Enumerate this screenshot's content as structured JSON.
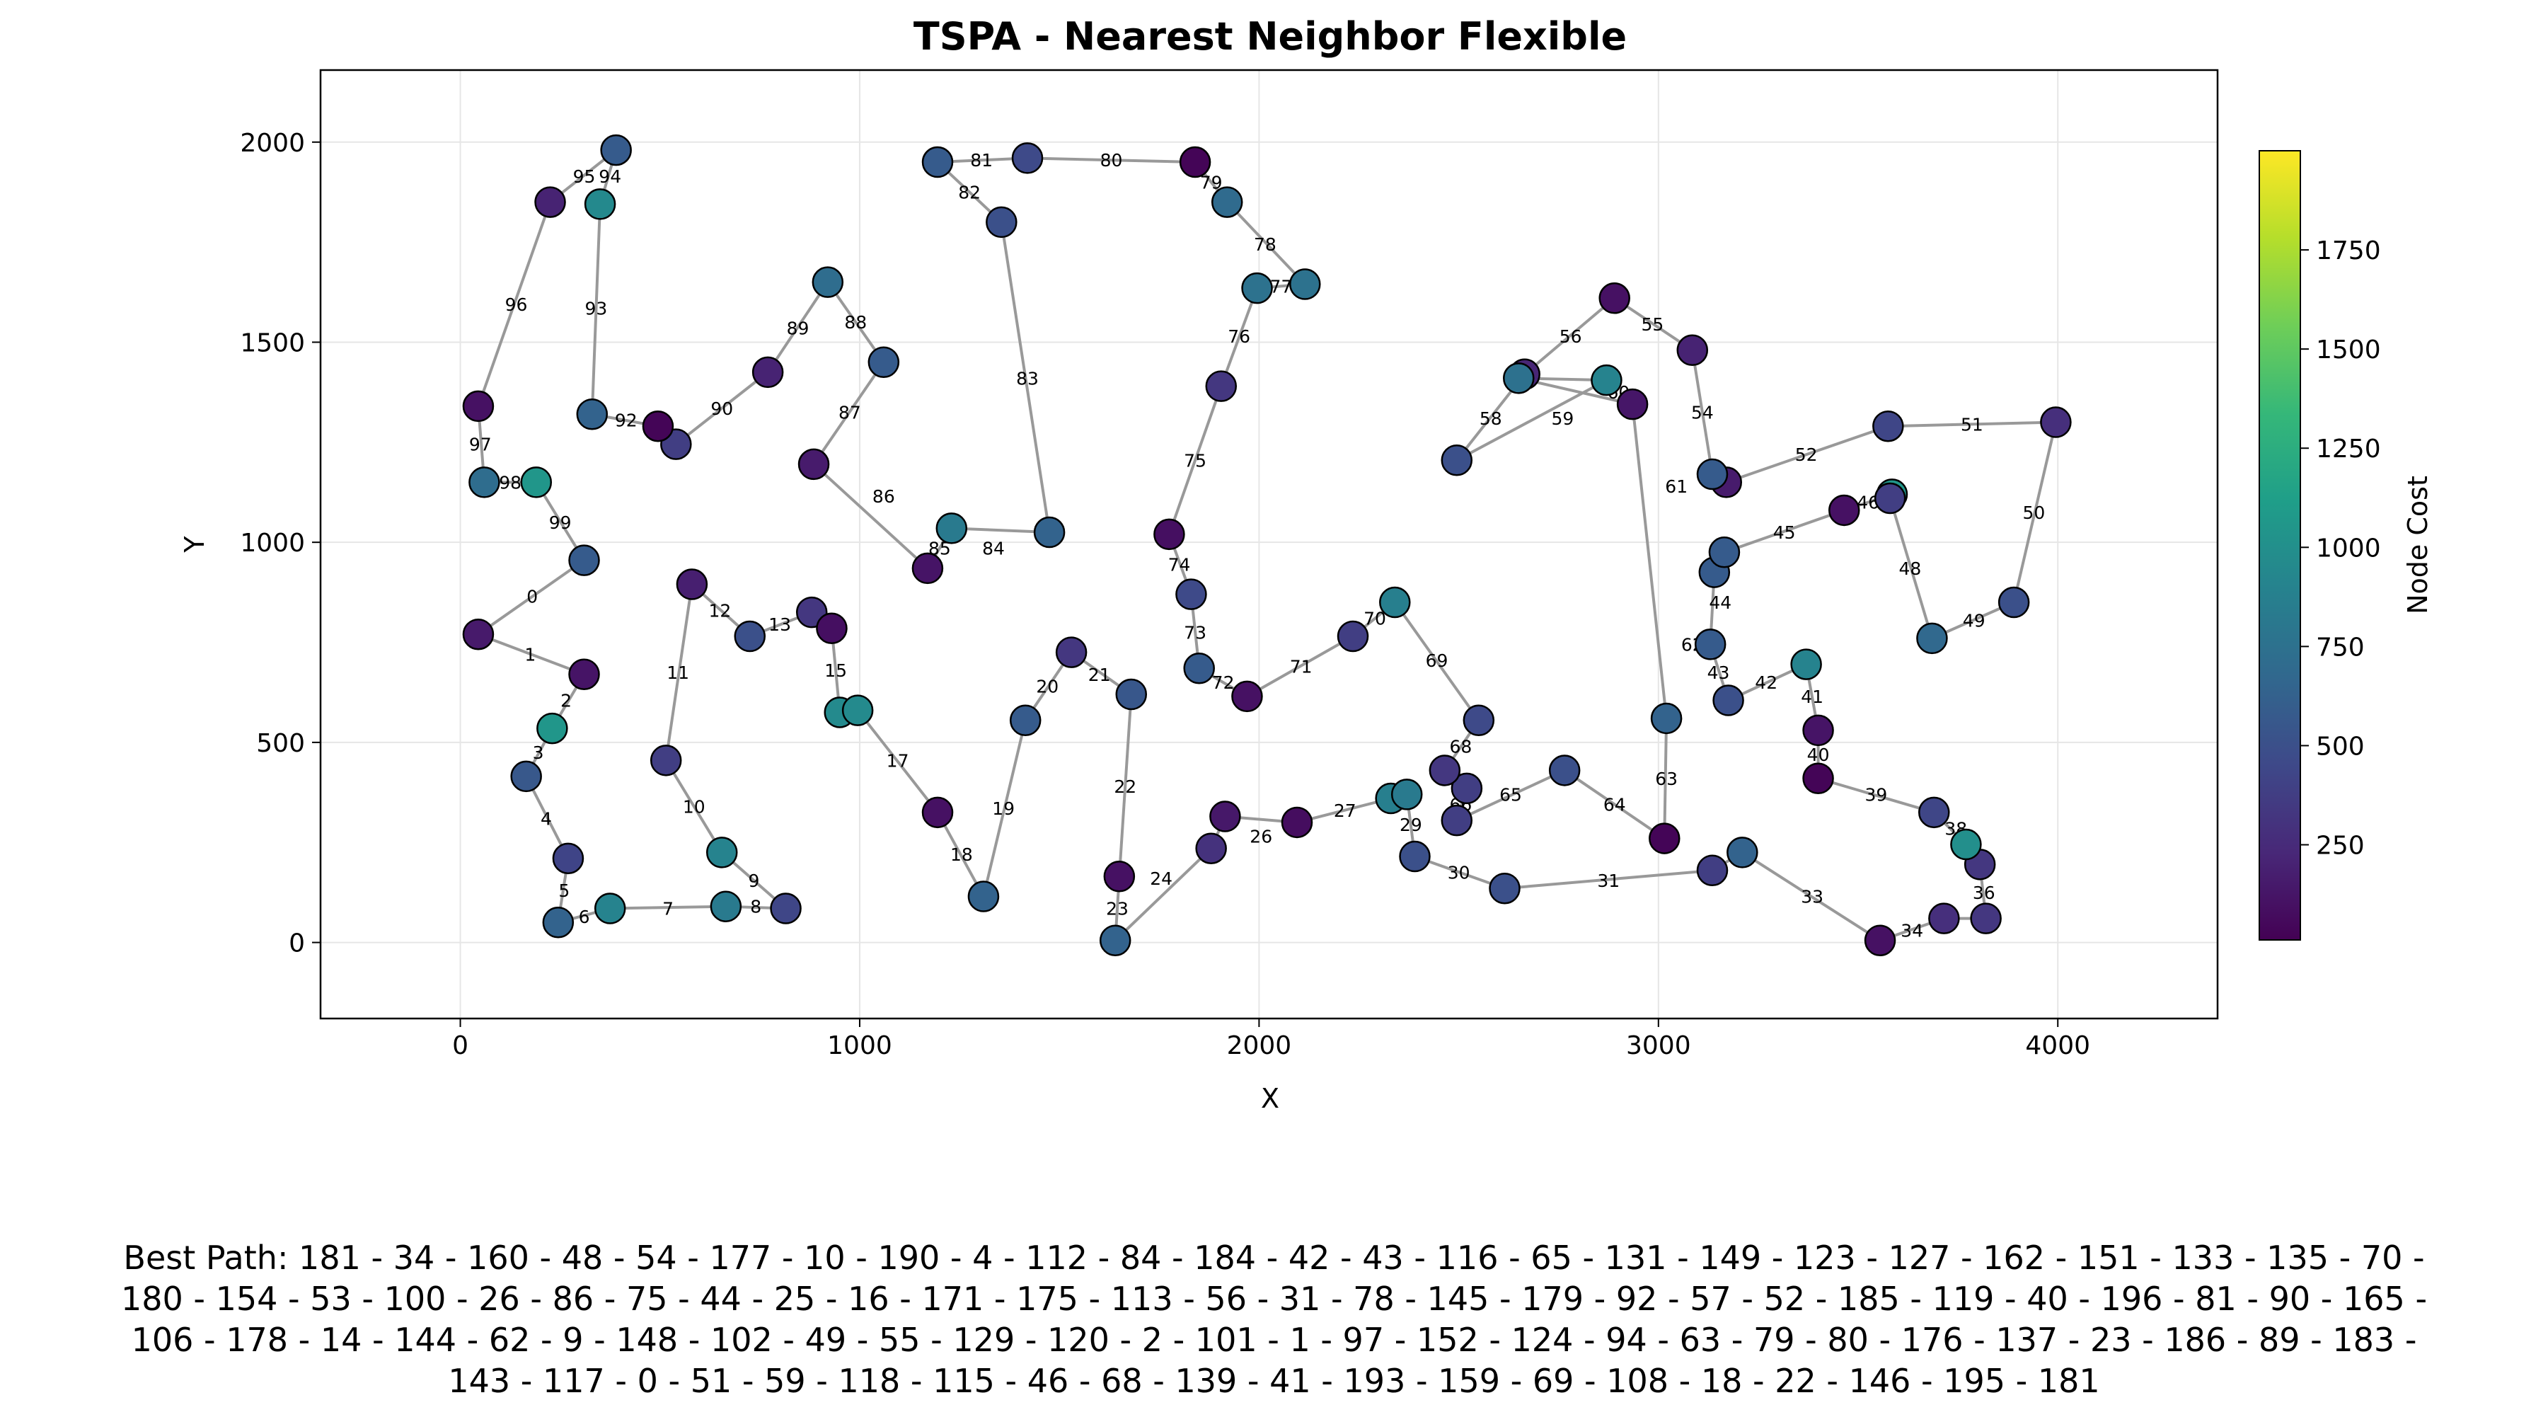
{
  "chart_data": {
    "type": "scatter",
    "title": "TSPA - Nearest Neighbor Flexible",
    "xlabel": "X",
    "ylabel": "Y",
    "xlim": [
      -350,
      4400
    ],
    "ylim": [
      -190,
      2180
    ],
    "xticks": [
      0,
      1000,
      2000,
      3000,
      4000
    ],
    "yticks": [
      0,
      500,
      1000,
      1500,
      2000
    ],
    "grid": true,
    "colorbar": {
      "label": "Node Cost",
      "range": [
        10,
        2000
      ],
      "ticks": [
        250,
        500,
        750,
        1000,
        1250,
        1500,
        1750
      ],
      "colormap": [
        "#440154",
        "#482878",
        "#3e4989",
        "#31688e",
        "#26828e",
        "#1f9e89",
        "#35b779",
        "#6ece58",
        "#b5de2b",
        "#fde725"
      ]
    },
    "edge_color": "#999999",
    "points": [
      {
        "x": 45,
        "y": 770,
        "cost": 150
      },
      {
        "x": 310,
        "y": 670,
        "cost": 120
      },
      {
        "x": 230,
        "y": 535,
        "cost": 1050
      },
      {
        "x": 165,
        "y": 415,
        "cost": 560
      },
      {
        "x": 270,
        "y": 210,
        "cost": 420
      },
      {
        "x": 245,
        "y": 50,
        "cost": 640
      },
      {
        "x": 375,
        "y": 85,
        "cost": 900
      },
      {
        "x": 665,
        "y": 90,
        "cost": 830
      },
      {
        "x": 815,
        "y": 85,
        "cost": 430
      },
      {
        "x": 655,
        "y": 225,
        "cost": 900
      },
      {
        "x": 515,
        "y": 455,
        "cost": 380
      },
      {
        "x": 580,
        "y": 895,
        "cost": 180
      },
      {
        "x": 725,
        "y": 765,
        "cost": 500
      },
      {
        "x": 880,
        "y": 825,
        "cost": 330
      },
      {
        "x": 930,
        "y": 785,
        "cost": 90
      },
      {
        "x": 950,
        "y": 575,
        "cost": 960
      },
      {
        "x": 995,
        "y": 580,
        "cost": 960
      },
      {
        "x": 1195,
        "y": 325,
        "cost": 100
      },
      {
        "x": 1310,
        "y": 115,
        "cost": 640
      },
      {
        "x": 1415,
        "y": 555,
        "cost": 580
      },
      {
        "x": 1530,
        "y": 725,
        "cost": 330
      },
      {
        "x": 1680,
        "y": 620,
        "cost": 550
      },
      {
        "x": 1650,
        "y": 165,
        "cost": 100
      },
      {
        "x": 1640,
        "y": 5,
        "cost": 640
      },
      {
        "x": 1880,
        "y": 235,
        "cost": 300
      },
      {
        "x": 1915,
        "y": 315,
        "cost": 140
      },
      {
        "x": 2095,
        "y": 300,
        "cost": 80
      },
      {
        "x": 2330,
        "y": 360,
        "cost": 870
      },
      {
        "x": 2370,
        "y": 370,
        "cost": 830
      },
      {
        "x": 2390,
        "y": 215,
        "cost": 500
      },
      {
        "x": 2615,
        "y": 135,
        "cost": 500
      },
      {
        "x": 3135,
        "y": 180,
        "cost": 380
      },
      {
        "x": 3210,
        "y": 225,
        "cost": 640
      },
      {
        "x": 3555,
        "y": 5,
        "cost": 100
      },
      {
        "x": 3715,
        "y": 60,
        "cost": 280
      },
      {
        "x": 3820,
        "y": 60,
        "cost": 330
      },
      {
        "x": 3805,
        "y": 195,
        "cost": 330
      },
      {
        "x": 3770,
        "y": 245,
        "cost": 1000
      },
      {
        "x": 3690,
        "y": 325,
        "cost": 430
      },
      {
        "x": 3400,
        "y": 410,
        "cost": 30
      },
      {
        "x": 3400,
        "y": 530,
        "cost": 120
      },
      {
        "x": 3370,
        "y": 695,
        "cost": 900
      },
      {
        "x": 3175,
        "y": 605,
        "cost": 500
      },
      {
        "x": 3130,
        "y": 745,
        "cost": 580
      },
      {
        "x": 3140,
        "y": 925,
        "cost": 580
      },
      {
        "x": 3165,
        "y": 975,
        "cost": 580
      },
      {
        "x": 3465,
        "y": 1080,
        "cost": 100
      },
      {
        "x": 3585,
        "y": 1120,
        "cost": 1050
      },
      {
        "x": 3580,
        "y": 1110,
        "cost": 380
      },
      {
        "x": 3685,
        "y": 760,
        "cost": 680
      },
      {
        "x": 3890,
        "y": 850,
        "cost": 500
      },
      {
        "x": 3995,
        "y": 1300,
        "cost": 280
      },
      {
        "x": 3575,
        "y": 1290,
        "cost": 430
      },
      {
        "x": 3170,
        "y": 1150,
        "cost": 160
      },
      {
        "x": 3135,
        "y": 1170,
        "cost": 580
      },
      {
        "x": 3085,
        "y": 1480,
        "cost": 200
      },
      {
        "x": 2890,
        "y": 1610,
        "cost": 100
      },
      {
        "x": 2665,
        "y": 1420,
        "cost": 220
      },
      {
        "x": 2495,
        "y": 1205,
        "cost": 500
      },
      {
        "x": 2870,
        "y": 1405,
        "cost": 900
      },
      {
        "x": 2650,
        "y": 1410,
        "cost": 750
      },
      {
        "x": 2935,
        "y": 1345,
        "cost": 130
      },
      {
        "x": 3020,
        "y": 560,
        "cost": 640
      },
      {
        "x": 3015,
        "y": 260,
        "cost": 30
      },
      {
        "x": 2765,
        "y": 430,
        "cost": 500
      },
      {
        "x": 2495,
        "y": 305,
        "cost": 380
      },
      {
        "x": 2520,
        "y": 385,
        "cost": 380
      },
      {
        "x": 2465,
        "y": 430,
        "cost": 330
      },
      {
        "x": 2550,
        "y": 555,
        "cost": 460
      },
      {
        "x": 2340,
        "y": 850,
        "cost": 870
      },
      {
        "x": 2235,
        "y": 765,
        "cost": 380
      },
      {
        "x": 1970,
        "y": 615,
        "cost": 100
      },
      {
        "x": 1850,
        "y": 685,
        "cost": 580
      },
      {
        "x": 1830,
        "y": 870,
        "cost": 460
      },
      {
        "x": 1775,
        "y": 1020,
        "cost": 90
      },
      {
        "x": 1905,
        "y": 1390,
        "cost": 330
      },
      {
        "x": 1995,
        "y": 1635,
        "cost": 760
      },
      {
        "x": 2115,
        "y": 1645,
        "cost": 760
      },
      {
        "x": 1920,
        "y": 1850,
        "cost": 700
      },
      {
        "x": 1840,
        "y": 1950,
        "cost": 30
      },
      {
        "x": 1420,
        "y": 1960,
        "cost": 460
      },
      {
        "x": 1195,
        "y": 1950,
        "cost": 580
      },
      {
        "x": 1355,
        "y": 1800,
        "cost": 500
      },
      {
        "x": 1475,
        "y": 1025,
        "cost": 640
      },
      {
        "x": 1230,
        "y": 1035,
        "cost": 830
      },
      {
        "x": 1170,
        "y": 935,
        "cost": 120
      },
      {
        "x": 885,
        "y": 1195,
        "cost": 160
      },
      {
        "x": 1060,
        "y": 1450,
        "cost": 580
      },
      {
        "x": 920,
        "y": 1650,
        "cost": 720
      },
      {
        "x": 770,
        "y": 1425,
        "cost": 200
      },
      {
        "x": 540,
        "y": 1245,
        "cost": 380
      },
      {
        "x": 495,
        "y": 1290,
        "cost": 30
      },
      {
        "x": 330,
        "y": 1320,
        "cost": 640
      },
      {
        "x": 350,
        "y": 1845,
        "cost": 950
      },
      {
        "x": 390,
        "y": 1980,
        "cost": 580
      },
      {
        "x": 225,
        "y": 1850,
        "cost": 200
      },
      {
        "x": 45,
        "y": 1340,
        "cost": 100
      },
      {
        "x": 60,
        "y": 1150,
        "cost": 720
      },
      {
        "x": 190,
        "y": 1150,
        "cost": 1050
      },
      {
        "x": 310,
        "y": 955,
        "cost": 580
      }
    ],
    "edge_labels": [
      {
        "label": "0",
        "x": 180,
        "y": 865
      },
      {
        "label": "1",
        "x": 175,
        "y": 720
      },
      {
        "label": "2",
        "x": 265,
        "y": 605
      },
      {
        "label": "3",
        "x": 195,
        "y": 475
      },
      {
        "label": "4",
        "x": 215,
        "y": 310
      },
      {
        "label": "5",
        "x": 260,
        "y": 130
      },
      {
        "label": "6",
        "x": 310,
        "y": 65
      },
      {
        "label": "7",
        "x": 520,
        "y": 85
      },
      {
        "label": "8",
        "x": 740,
        "y": 90
      },
      {
        "label": "9",
        "x": 735,
        "y": 155
      },
      {
        "label": "10",
        "x": 585,
        "y": 340
      },
      {
        "label": "11",
        "x": 545,
        "y": 675
      },
      {
        "label": "12",
        "x": 650,
        "y": 830
      },
      {
        "label": "13",
        "x": 800,
        "y": 795
      },
      {
        "label": "15",
        "x": 940,
        "y": 680
      },
      {
        "label": "17",
        "x": 1095,
        "y": 455
      },
      {
        "label": "18",
        "x": 1255,
        "y": 220
      },
      {
        "label": "19",
        "x": 1360,
        "y": 335
      },
      {
        "label": "20",
        "x": 1470,
        "y": 640
      },
      {
        "label": "21",
        "x": 1600,
        "y": 670
      },
      {
        "label": "22",
        "x": 1665,
        "y": 390
      },
      {
        "label": "23",
        "x": 1645,
        "y": 85
      },
      {
        "label": "24",
        "x": 1755,
        "y": 160
      },
      {
        "label": "26",
        "x": 2005,
        "y": 265
      },
      {
        "label": "27",
        "x": 2215,
        "y": 330
      },
      {
        "label": "29",
        "x": 2380,
        "y": 295
      },
      {
        "label": "30",
        "x": 2500,
        "y": 175
      },
      {
        "label": "31",
        "x": 2875,
        "y": 155
      },
      {
        "label": "33",
        "x": 3385,
        "y": 115
      },
      {
        "label": "34",
        "x": 3635,
        "y": 30
      },
      {
        "label": "36",
        "x": 3815,
        "y": 125
      },
      {
        "label": "38",
        "x": 3745,
        "y": 285
      },
      {
        "label": "39",
        "x": 3545,
        "y": 370
      },
      {
        "label": "40",
        "x": 3400,
        "y": 470
      },
      {
        "label": "41",
        "x": 3385,
        "y": 615
      },
      {
        "label": "42",
        "x": 3270,
        "y": 650
      },
      {
        "label": "43",
        "x": 3150,
        "y": 675
      },
      {
        "label": "44",
        "x": 3155,
        "y": 850
      },
      {
        "label": "45",
        "x": 3315,
        "y": 1025
      },
      {
        "label": "46",
        "x": 3525,
        "y": 1100
      },
      {
        "label": "48",
        "x": 3630,
        "y": 935
      },
      {
        "label": "49",
        "x": 3790,
        "y": 805
      },
      {
        "label": "50",
        "x": 3940,
        "y": 1075
      },
      {
        "label": "51",
        "x": 3785,
        "y": 1295
      },
      {
        "label": "52",
        "x": 3370,
        "y": 1220
      },
      {
        "label": "54",
        "x": 3110,
        "y": 1325
      },
      {
        "label": "55",
        "x": 2985,
        "y": 1545
      },
      {
        "label": "56",
        "x": 2780,
        "y": 1515
      },
      {
        "label": "58",
        "x": 2580,
        "y": 1310
      },
      {
        "label": "59",
        "x": 2760,
        "y": 1310
      },
      {
        "label": "60",
        "x": 2900,
        "y": 1375
      },
      {
        "label": "61",
        "x": 3045,
        "y": 1140
      },
      {
        "label": "62",
        "x": 3085,
        "y": 745
      },
      {
        "label": "63",
        "x": 3020,
        "y": 410
      },
      {
        "label": "64",
        "x": 2890,
        "y": 345
      },
      {
        "label": "65",
        "x": 2630,
        "y": 370
      },
      {
        "label": "66",
        "x": 2505,
        "y": 345
      },
      {
        "label": "68",
        "x": 2505,
        "y": 490
      },
      {
        "label": "69",
        "x": 2445,
        "y": 705
      },
      {
        "label": "70",
        "x": 2290,
        "y": 810
      },
      {
        "label": "71",
        "x": 2105,
        "y": 690
      },
      {
        "label": "72",
        "x": 1910,
        "y": 650
      },
      {
        "label": "73",
        "x": 1840,
        "y": 775
      },
      {
        "label": "74",
        "x": 1800,
        "y": 945
      },
      {
        "label": "75",
        "x": 1840,
        "y": 1205
      },
      {
        "label": "76",
        "x": 1950,
        "y": 1515
      },
      {
        "label": "77",
        "x": 2055,
        "y": 1640
      },
      {
        "label": "78",
        "x": 2015,
        "y": 1745
      },
      {
        "label": "79",
        "x": 1880,
        "y": 1900
      },
      {
        "label": "80",
        "x": 1630,
        "y": 1955
      },
      {
        "label": "81",
        "x": 1305,
        "y": 1955
      },
      {
        "label": "82",
        "x": 1275,
        "y": 1875
      },
      {
        "label": "83",
        "x": 1420,
        "y": 1410
      },
      {
        "label": "84",
        "x": 1335,
        "y": 985
      },
      {
        "label": "85",
        "x": 1200,
        "y": 985
      },
      {
        "label": "86",
        "x": 1060,
        "y": 1115
      },
      {
        "label": "87",
        "x": 975,
        "y": 1325
      },
      {
        "label": "88",
        "x": 990,
        "y": 1550
      },
      {
        "label": "89",
        "x": 845,
        "y": 1535
      },
      {
        "label": "90",
        "x": 655,
        "y": 1335
      },
      {
        "label": "92",
        "x": 415,
        "y": 1305
      },
      {
        "label": "93",
        "x": 340,
        "y": 1585
      },
      {
        "label": "94",
        "x": 375,
        "y": 1915
      },
      {
        "label": "95",
        "x": 310,
        "y": 1915
      },
      {
        "label": "96",
        "x": 140,
        "y": 1595
      },
      {
        "label": "97",
        "x": 50,
        "y": 1245
      },
      {
        "label": "98",
        "x": 125,
        "y": 1150
      },
      {
        "label": "99",
        "x": 250,
        "y": 1050
      }
    ]
  },
  "best_path": {
    "lines": [
      "Best Path: 181 - 34 - 160 - 48 - 54 - 177 - 10 - 190 - 4 - 112 - 84 - 184 - 42 - 43 - 116 - 65 - 131 - 149 - 123 - 127 - 162 - 151 - 133 - 135 - 70 -",
      "180 - 154 - 53 - 100 - 26 - 86 - 75 - 44 - 25 - 16 - 171 - 175 - 113 - 56 - 31 - 78 - 145 - 179 - 92 - 57 - 52 - 185 - 119 - 40 - 196 - 81 - 90 - 165 -",
      "106 - 178 - 14 - 144 - 62 - 9 - 148 - 102 - 49 - 55 - 129 - 120 - 2 - 101 - 1 - 97 - 152 - 124 - 94 - 63 - 79 - 80 - 176 - 137 - 23 - 186 - 89 - 183 -",
      "143 - 117 - 0 - 51 - 59 - 118 - 115 - 46 - 68 - 139 - 41 - 193 - 159 - 69 - 108 - 18 - 22 - 146 - 195 - 181"
    ]
  }
}
